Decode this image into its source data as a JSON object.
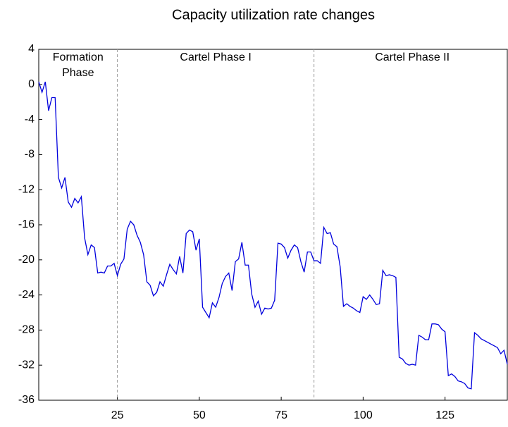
{
  "chart_data": {
    "type": "line",
    "title": "Capacity utilization rate changes",
    "annotations": [
      [
        "Formation",
        "Phase"
      ],
      [
        "Cartel Phase I"
      ],
      [
        "Cartel Phase II"
      ]
    ],
    "annotation_x": [
      13,
      55,
      115
    ],
    "phase_lines": [
      25,
      85
    ],
    "x": [
      1,
      2,
      3,
      4,
      5,
      6,
      7,
      8,
      9,
      10,
      11,
      12,
      13,
      14,
      15,
      16,
      17,
      18,
      19,
      20,
      21,
      22,
      23,
      24,
      25,
      26,
      27,
      28,
      29,
      30,
      31,
      32,
      33,
      34,
      35,
      36,
      37,
      38,
      39,
      40,
      41,
      42,
      43,
      44,
      45,
      46,
      47,
      48,
      49,
      50,
      51,
      52,
      53,
      54,
      55,
      56,
      57,
      58,
      59,
      60,
      61,
      62,
      63,
      64,
      65,
      66,
      67,
      68,
      69,
      70,
      71,
      72,
      73,
      74,
      75,
      76,
      77,
      78,
      79,
      80,
      81,
      82,
      83,
      84,
      85,
      86,
      87,
      88,
      89,
      90,
      91,
      92,
      93,
      94,
      95,
      96,
      97,
      98,
      99,
      100,
      101,
      102,
      103,
      104,
      105,
      106,
      107,
      108,
      109,
      110,
      111,
      112,
      113,
      114,
      115,
      116,
      117,
      118,
      119,
      120,
      121,
      122,
      123,
      124,
      125,
      126,
      127,
      128,
      129,
      130,
      131,
      132,
      133,
      134,
      135,
      136,
      137,
      138,
      139,
      140,
      141,
      142,
      143,
      144
    ],
    "series": [
      {
        "name": "Capacity utilization rate changes",
        "color": "#0000dd",
        "values": [
          0.3,
          -0.9,
          0.3,
          -3.0,
          -1.5,
          -1.5,
          -10.6,
          -11.8,
          -10.6,
          -13.4,
          -14.0,
          -13.0,
          -13.5,
          -12.8,
          -17.5,
          -19.4,
          -18.3,
          -18.6,
          -21.5,
          -21.4,
          -21.5,
          -20.7,
          -20.7,
          -20.4,
          -21.8,
          -20.5,
          -19.9,
          -16.5,
          -15.6,
          -16.0,
          -17.2,
          -18.0,
          -19.4,
          -22.5,
          -22.9,
          -24.1,
          -23.7,
          -22.5,
          -23.0,
          -21.7,
          -20.5,
          -21.1,
          -21.6,
          -19.6,
          -21.5,
          -17.0,
          -16.6,
          -16.8,
          -18.9,
          -17.6,
          -25.4,
          -26.0,
          -26.6,
          -24.9,
          -25.4,
          -24.3,
          -22.7,
          -21.9,
          -21.5,
          -23.5,
          -20.2,
          -19.9,
          -18.0,
          -20.6,
          -20.6,
          -23.9,
          -25.4,
          -24.7,
          -26.2,
          -25.5,
          -25.6,
          -25.5,
          -24.6,
          -18.1,
          -18.2,
          -18.6,
          -19.8,
          -18.9,
          -18.3,
          -18.6,
          -20.2,
          -21.4,
          -19.1,
          -19.1,
          -20.1,
          -20.1,
          -20.4,
          -16.3,
          -17.0,
          -16.9,
          -18.2,
          -18.5,
          -20.8,
          -25.3,
          -25.0,
          -25.3,
          -25.5,
          -25.8,
          -26.0,
          -24.2,
          -24.5,
          -24.0,
          -24.5,
          -25.1,
          -25.0,
          -21.2,
          -21.8,
          -21.7,
          -21.8,
          -22.0,
          -31.1,
          -31.3,
          -31.8,
          -32.0,
          -31.9,
          -32.0,
          -28.6,
          -28.8,
          -29.1,
          -29.1,
          -27.3,
          -27.3,
          -27.4,
          -27.9,
          -28.2,
          -33.2,
          -33.0,
          -33.3,
          -33.8,
          -33.9,
          -34.1,
          -34.6,
          -34.7,
          -28.3,
          -28.6,
          -29.0,
          -29.2,
          -29.4,
          -29.6,
          -29.8,
          -30.0,
          -30.7,
          -30.3,
          -31.9
        ]
      }
    ],
    "xlim": [
      1,
      144
    ],
    "xticks": [
      25,
      50,
      75,
      100,
      125
    ],
    "ylim": [
      -36,
      4
    ],
    "yticks": [
      4,
      0,
      -4,
      -8,
      -12,
      -16,
      -20,
      -24,
      -28,
      -32,
      -36
    ]
  }
}
